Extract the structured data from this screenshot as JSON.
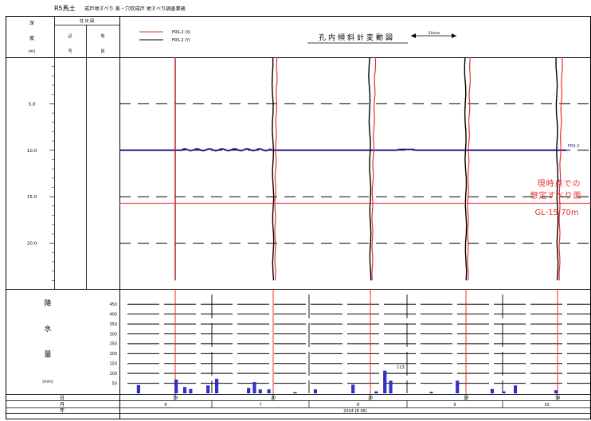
{
  "header": {
    "title_prefix": "R5馬土",
    "title_text": "成戸地すべり 美・穴吹成戸 地すべり調査業務",
    "col_depth": [
      "深",
      "度",
      "(m)"
    ],
    "col_column_top": "柱 状 図",
    "col_kigo": [
      "記",
      "号"
    ],
    "col_chishitsu": [
      "地",
      "質"
    ],
    "chart_title": "孔内傾斜計変動図",
    "scale_label": "20mm"
  },
  "legend": [
    {
      "name": "FRS-2 (X)",
      "color": "#e8302a"
    },
    {
      "name": "FRS-2 (Y)",
      "color": "#000000"
    }
  ],
  "colors": {
    "x_series": "#e8302a",
    "y_series": "#000000",
    "water_level": "#1b1f8a",
    "rain_bar": "#3333cc",
    "slip_line": "#e8302a",
    "annotation": "#e8302a"
  },
  "annotation": {
    "line1": "現時点での",
    "line2": "想定すべり面",
    "line3": "GL-15.70m"
  },
  "water_label": "FRS-2",
  "rain": {
    "label_chars": [
      "降",
      "水",
      "量"
    ],
    "unit": "(mm)",
    "max_label": "113"
  },
  "footer": {
    "row_day": "日",
    "row_month": "月",
    "row_year": "年",
    "year_value": "2024 (R 06)"
  },
  "chart_data": [
    {
      "type": "line",
      "title": "孔内傾斜計変動図",
      "ylabel": "深度 (m)",
      "ylim": [
        0,
        25
      ],
      "y_ticks": [
        "5.0",
        "10.0",
        "15.0",
        "20.0"
      ],
      "series": [
        {
          "name": "FRS-2 (X)"
        },
        {
          "name": "FRS-2 (Y)"
        }
      ],
      "measurement_dates": [
        "6/19",
        "7/20",
        "8/20",
        "9/19",
        "10/18"
      ],
      "slip_surface_depth": 15.7,
      "water_level_depth": 10.0
    },
    {
      "type": "bar",
      "ylabel": "降水量 (mm)",
      "ylim": [
        0,
        450
      ],
      "y_ticks": [
        "50",
        "100",
        "150",
        "200",
        "250",
        "300",
        "350",
        "400",
        "450"
      ],
      "values": [
        {
          "day": 6,
          "value": 40
        },
        {
          "day": 19,
          "value": 68
        },
        {
          "day": 22,
          "value": 30
        },
        {
          "day": 24,
          "value": 20
        },
        {
          "day": 30,
          "value": 38
        },
        {
          "day": 33,
          "value": 72
        },
        {
          "day": 44,
          "value": 25
        },
        {
          "day": 46,
          "value": 55
        },
        {
          "day": 48,
          "value": 18
        },
        {
          "day": 51,
          "value": 18
        },
        {
          "day": 60,
          "value": 4
        },
        {
          "day": 67,
          "value": 18
        },
        {
          "day": 80,
          "value": 42
        },
        {
          "day": 88,
          "value": 8
        },
        {
          "day": 91,
          "value": 113
        },
        {
          "day": 93,
          "value": 62
        },
        {
          "day": 107,
          "value": 5
        },
        {
          "day": 116,
          "value": 62
        },
        {
          "day": 128,
          "value": 20
        },
        {
          "day": 132,
          "value": 8
        },
        {
          "day": 136,
          "value": 38
        },
        {
          "day": 150,
          "value": 14
        }
      ]
    }
  ],
  "timeline": {
    "day_labels": [
      "19",
      "20",
      "20",
      "19",
      "18"
    ],
    "months": [
      "6",
      "7",
      "8",
      "9",
      "10"
    ]
  }
}
